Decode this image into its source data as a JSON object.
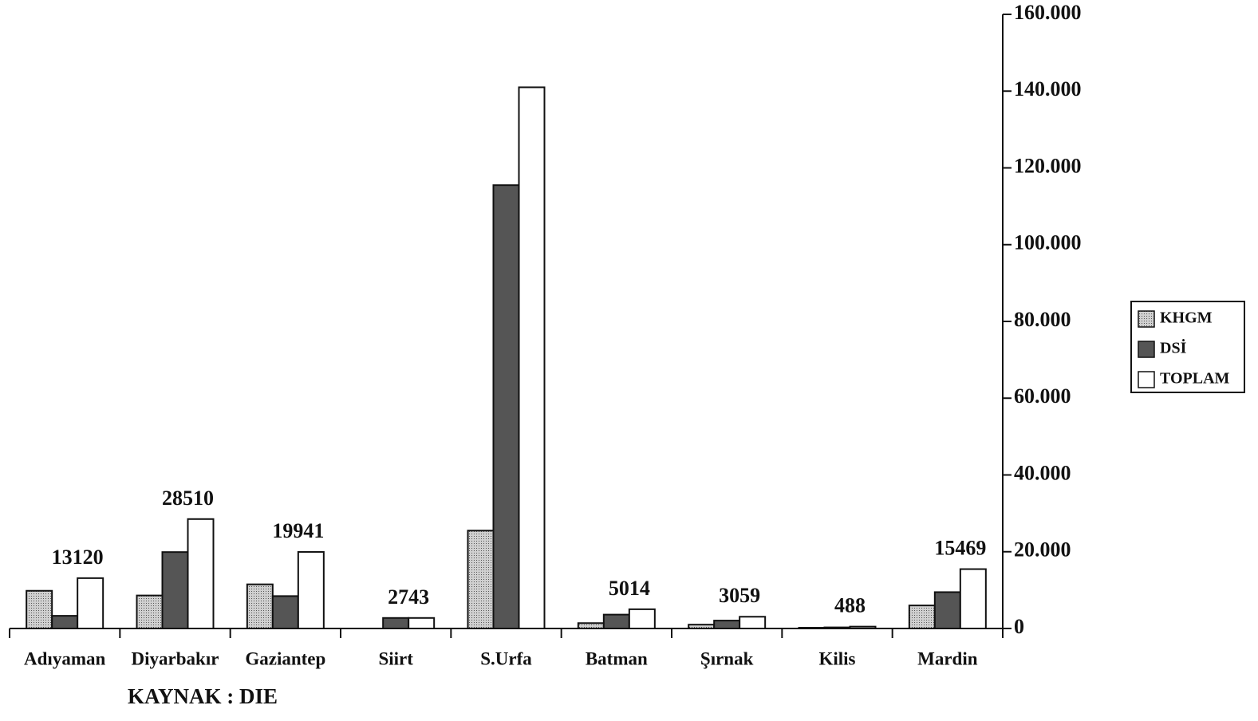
{
  "chart_data": {
    "type": "bar",
    "categories": [
      "Adıyaman",
      "Diyarbakır",
      "Gaziantep",
      "Siirt",
      "S.Urfa",
      "Batman",
      "Şırnak",
      "Kilis",
      "Mardin"
    ],
    "series": [
      {
        "name": "KHGM",
        "color": "#b5b5b5",
        "values": [
          9820,
          8600,
          11500,
          null,
          25500,
          1400,
          1000,
          200,
          6000
        ]
      },
      {
        "name": "DSİ",
        "color": "#555555",
        "values": [
          3300,
          19910,
          8441,
          2743,
          115500,
          3614,
          2059,
          288,
          9469
        ]
      },
      {
        "name": "TOPLAM",
        "color": "#ffffff",
        "values": [
          13120,
          28510,
          19941,
          2743,
          141000,
          5014,
          3059,
          488,
          15469
        ],
        "value_labels": [
          "13120",
          "28510",
          "19941",
          "2743",
          null,
          "5014",
          "3059",
          "488",
          "15469"
        ]
      }
    ],
    "ylim": [
      0,
      160000
    ],
    "yticks": [
      0,
      {
        "value": 20000,
        "label": "20.000"
      },
      {
        "value": 40000,
        "label": "40.000"
      },
      {
        "value": 60000,
        "label": "60.000"
      },
      {
        "value": 80000,
        "label": "80.000"
      },
      {
        "value": 100000,
        "label": "100.000"
      },
      {
        "value": 120000,
        "label": "120.000"
      },
      {
        "value": 140000,
        "label": "140.000"
      },
      {
        "value": 160000,
        "label": "160.000"
      }
    ],
    "y_axis_side": "right",
    "legend": "right",
    "source": "KAYNAK : DIE"
  }
}
